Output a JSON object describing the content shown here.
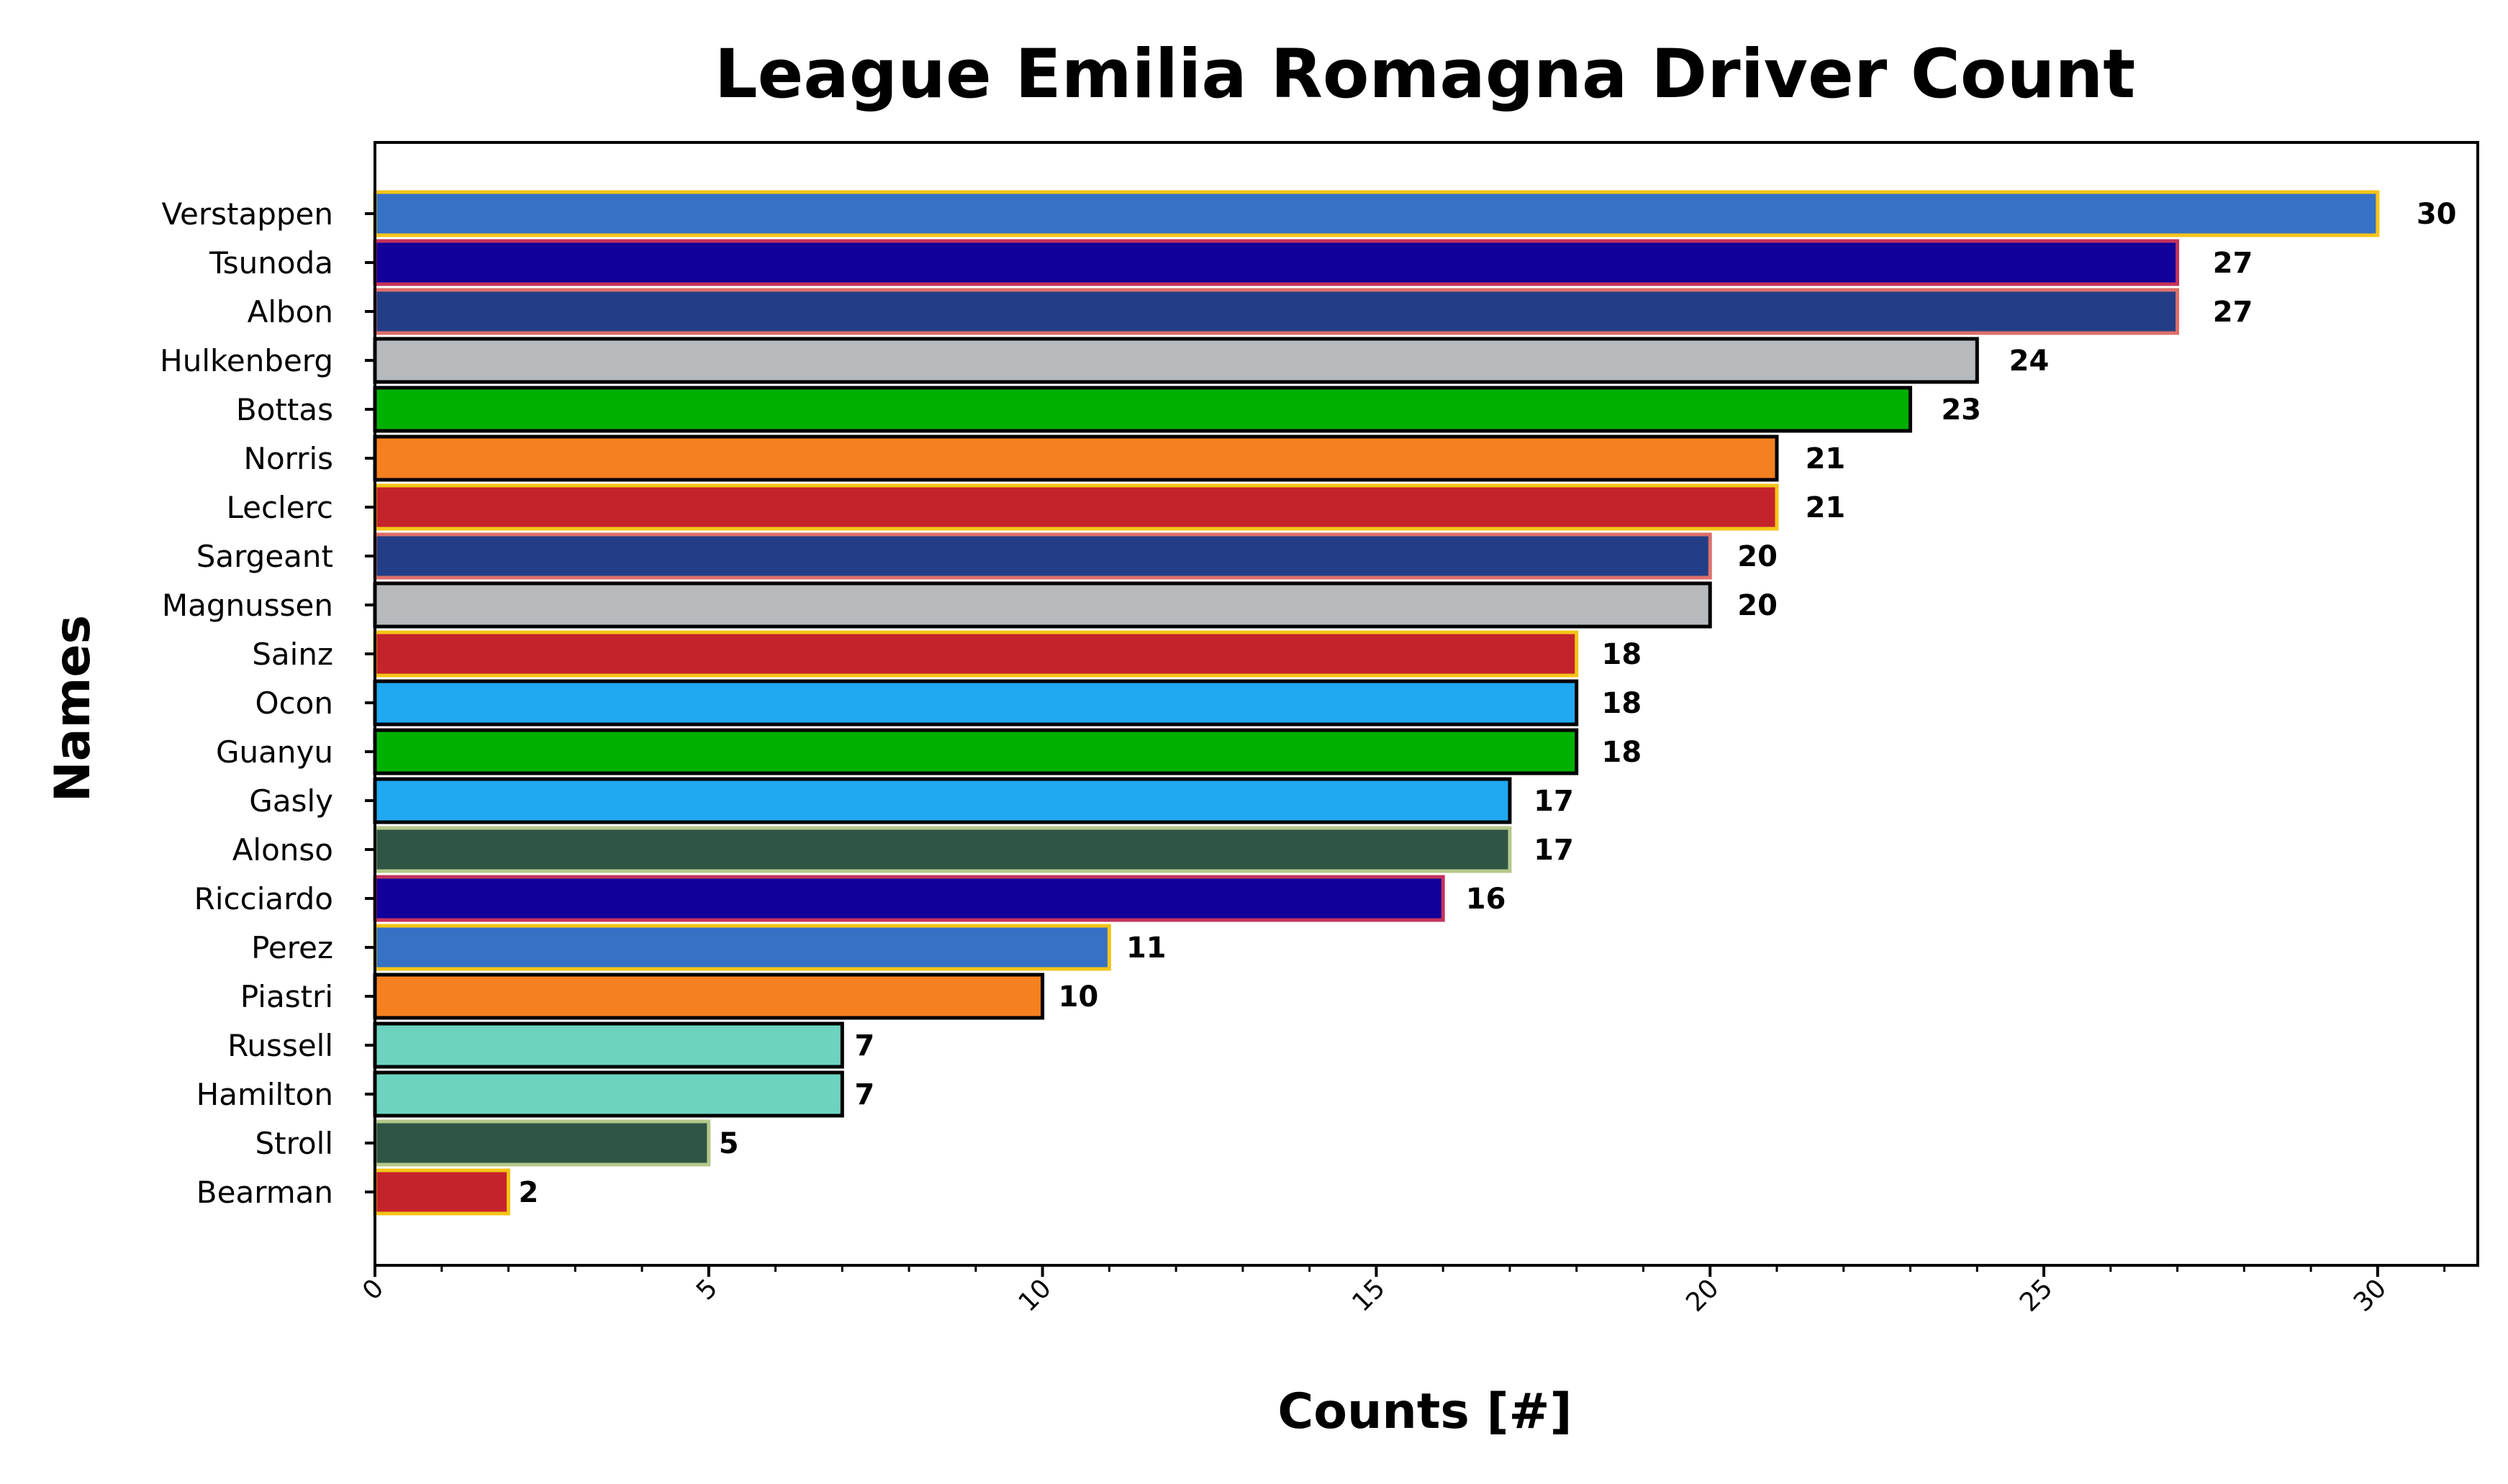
{
  "chart_data": {
    "type": "bar",
    "orientation": "horizontal",
    "title": "League Emilia Romagna Driver Count",
    "xlabel": "Counts [#]",
    "ylabel": "Names",
    "xlim": [
      0,
      31.5
    ],
    "xticks": [
      "0",
      "5",
      "10",
      "15",
      "20",
      "25",
      "30"
    ],
    "xtick_values": [
      0,
      5,
      10,
      15,
      20,
      25,
      30
    ],
    "grid": false,
    "legend": "none",
    "categories": [
      "Verstappen",
      "Tsunoda",
      "Albon",
      "Hulkenberg",
      "Bottas",
      "Norris",
      "Leclerc",
      "Sargeant",
      "Magnussen",
      "Sainz",
      "Ocon",
      "Guanyu",
      "Gasly",
      "Alonso",
      "Ricciardo",
      "Perez",
      "Piastri",
      "Russell",
      "Hamilton",
      "Stroll",
      "Bearman"
    ],
    "values": [
      30,
      27,
      27,
      24,
      23,
      21,
      21,
      20,
      20,
      18,
      18,
      18,
      17,
      17,
      16,
      11,
      10,
      7,
      7,
      5,
      2
    ],
    "value_labels": [
      "30",
      "27",
      "27",
      "24",
      "23",
      "21",
      "21",
      "20",
      "20",
      "18",
      "18",
      "18",
      "17",
      "17",
      "16",
      "11",
      "10",
      "7",
      "7",
      "5",
      "2"
    ],
    "fill_colors": [
      "#3671C6",
      "#11009A",
      "#233E86",
      "#B6BABD",
      "#00B000",
      "#F58020",
      "#C4232B",
      "#233E86",
      "#B6BABD",
      "#C4232B",
      "#20A8F0",
      "#00B000",
      "#20A8F0",
      "#2F5545",
      "#11009A",
      "#3671C6",
      "#F58020",
      "#6CD3BF",
      "#6CD3BF",
      "#2F5545",
      "#C4232B"
    ],
    "edge_colors": [
      "#F4C418",
      "#C3335C",
      "#DC6F6A",
      "#000000",
      "#000000",
      "#000000",
      "#F4C418",
      "#DC6F6A",
      "#000000",
      "#F4C418",
      "#000000",
      "#000000",
      "#000000",
      "#B4C88A",
      "#C3335C",
      "#F4C418",
      "#000000",
      "#000000",
      "#000000",
      "#B4C88A",
      "#F4C418"
    ]
  }
}
